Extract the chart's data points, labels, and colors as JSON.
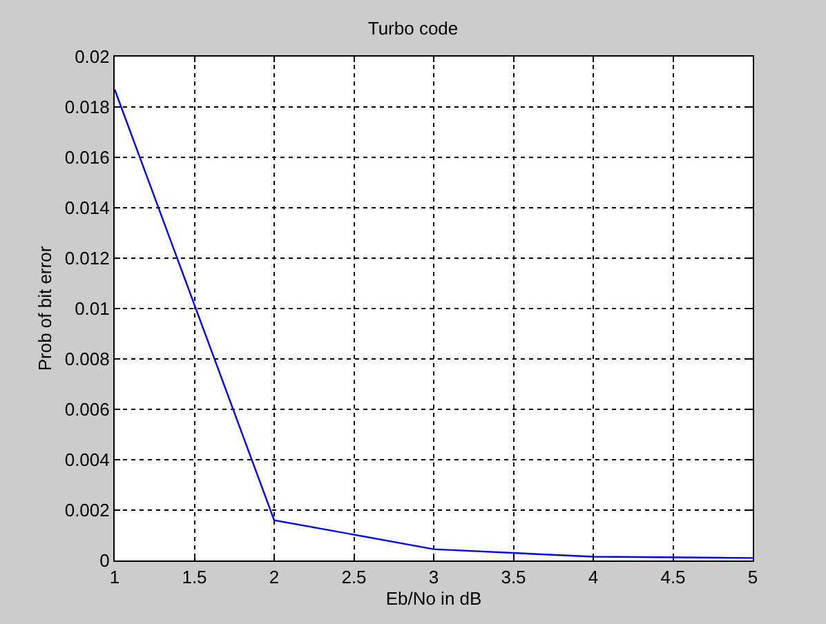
{
  "chart_data": {
    "type": "line",
    "title": "Turbo code",
    "xlabel": "Eb/No in dB",
    "ylabel": "Prob of bit error",
    "x": [
      1,
      2,
      3,
      4,
      5
    ],
    "series": [
      {
        "color": "#0000ff",
        "values": [
          0.0187,
          0.0016,
          0.00045,
          0.00015,
          0.0001
        ]
      }
    ],
    "xlim": [
      1,
      5
    ],
    "xticks": [
      1,
      1.5,
      2,
      2.5,
      3,
      3.5,
      4,
      4.5,
      5
    ],
    "ylim": [
      0,
      0.02
    ],
    "yticks": [
      0,
      0.002,
      0.004,
      0.006,
      0.008,
      0.01,
      0.012,
      0.014,
      0.016,
      0.018,
      0.02
    ],
    "grid": true,
    "line_style": "solid",
    "marker": "none"
  }
}
